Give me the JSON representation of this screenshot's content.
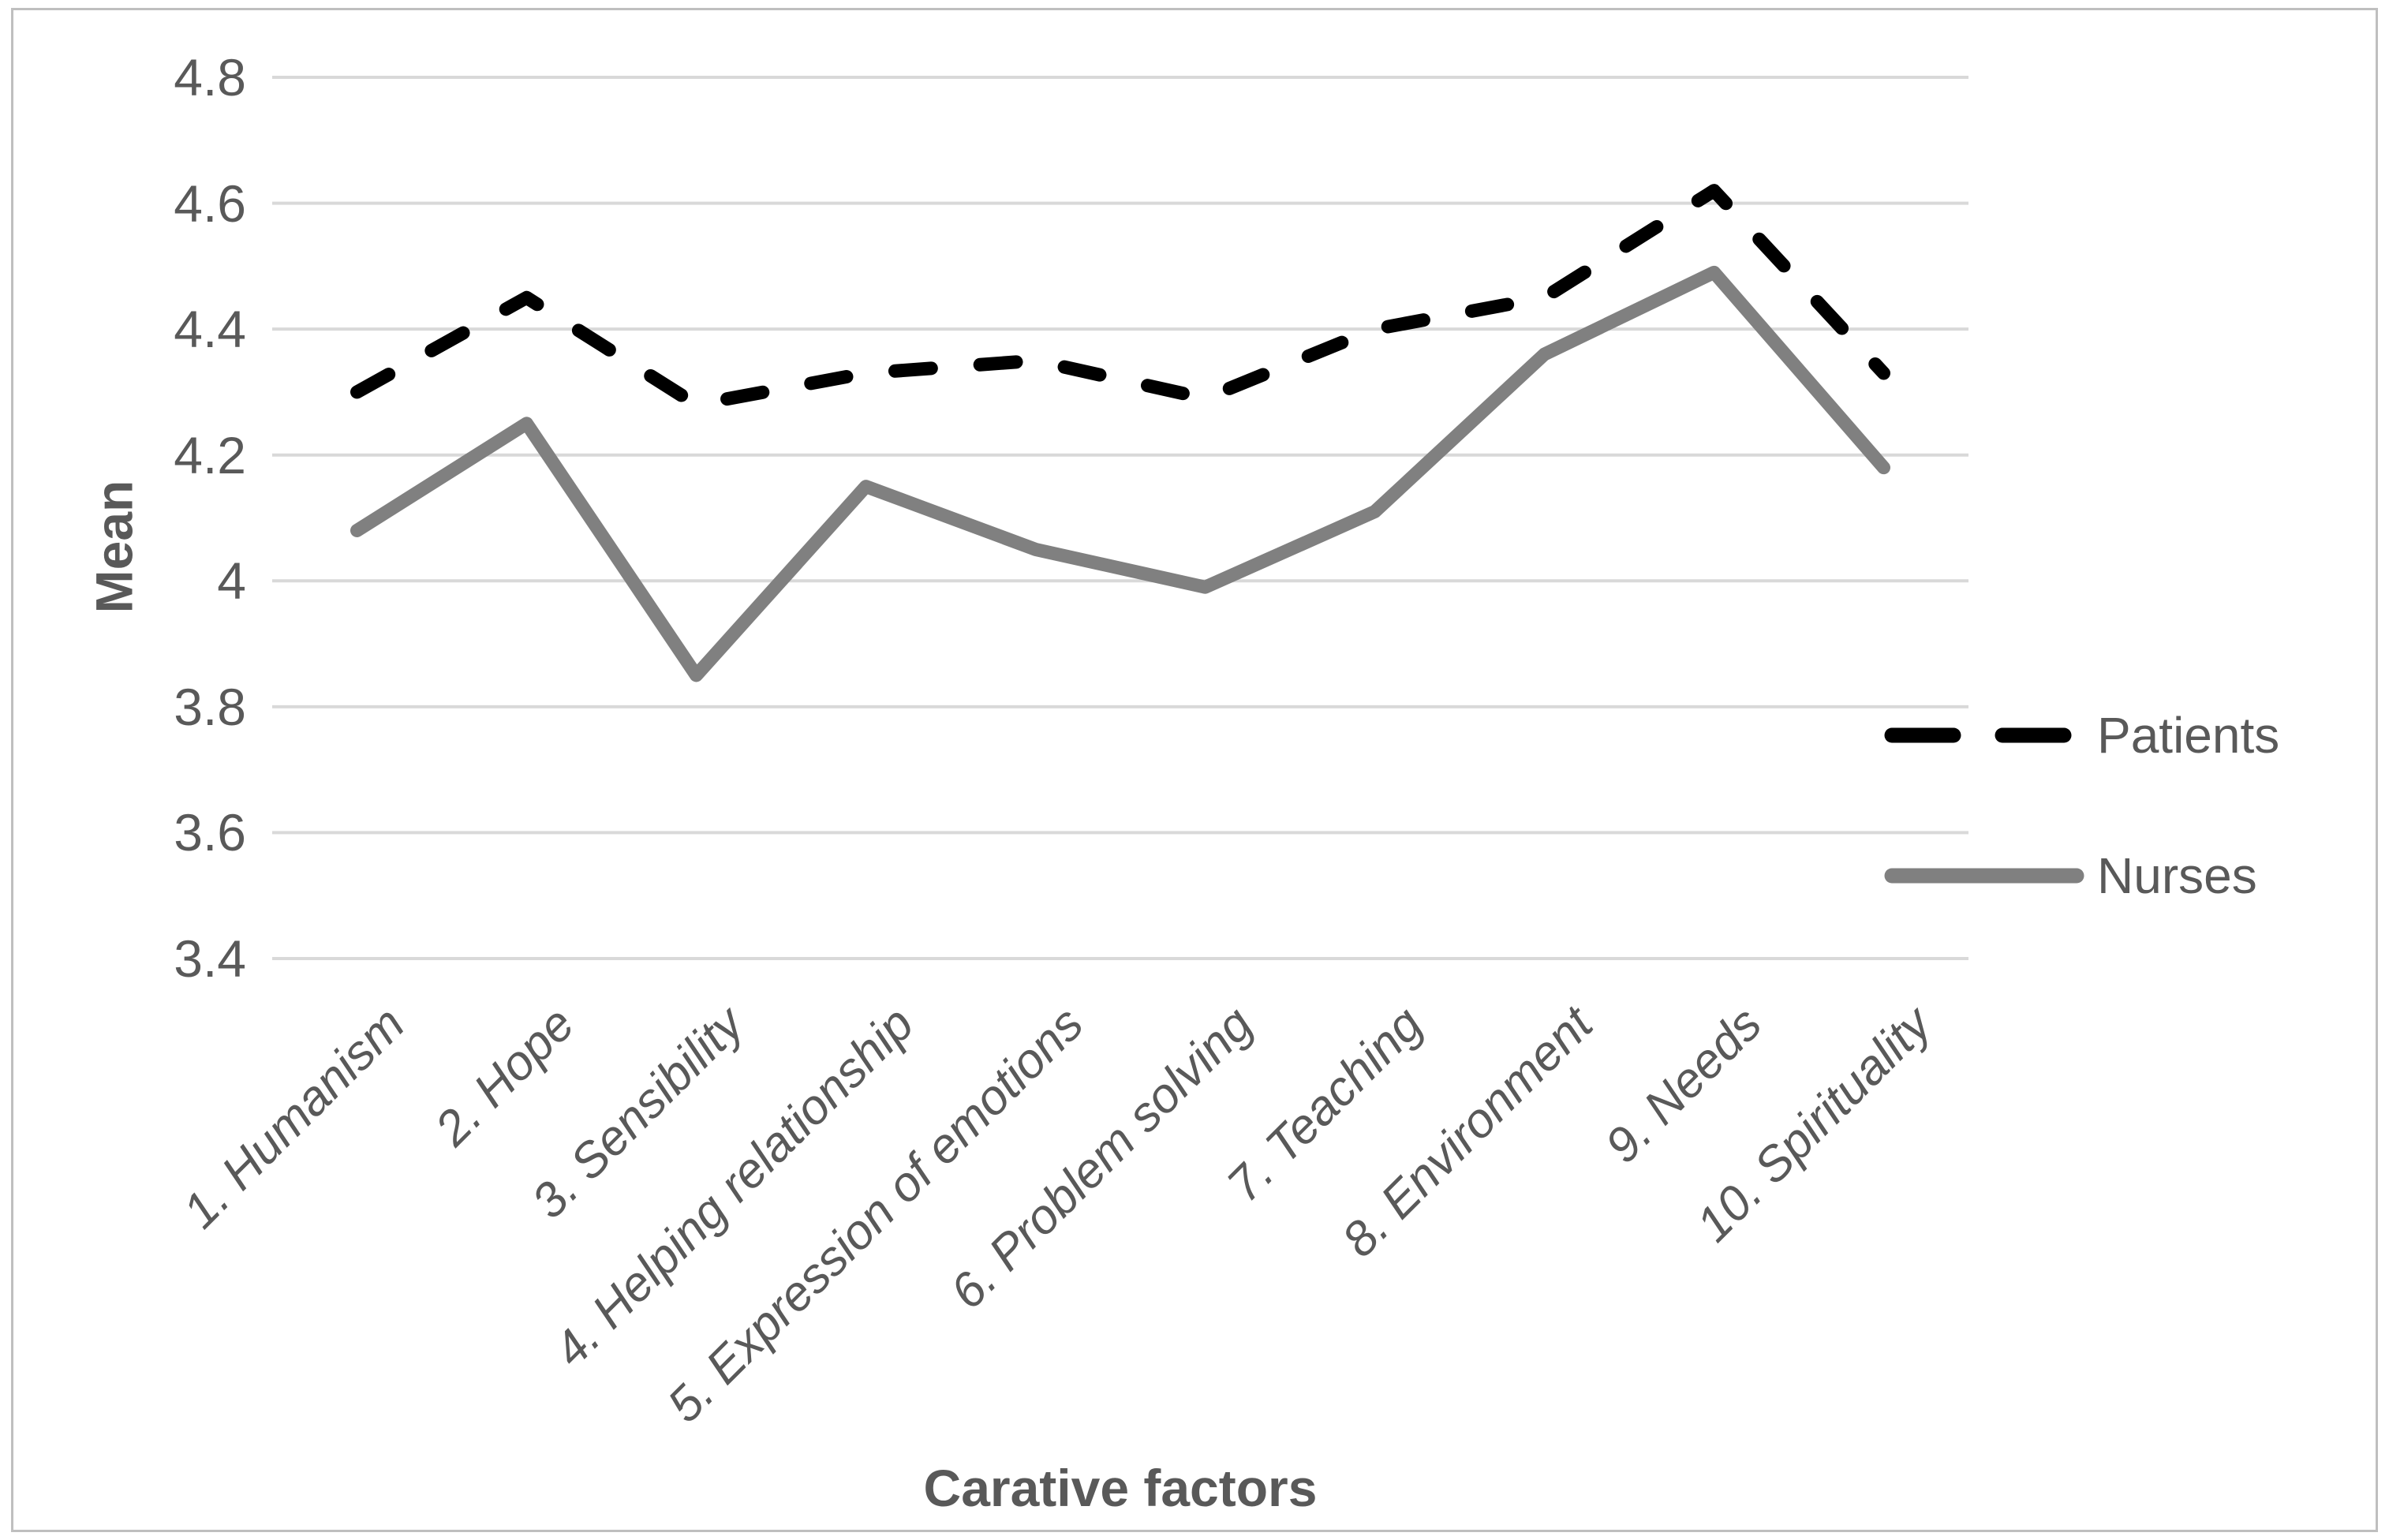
{
  "chart_data": {
    "type": "line",
    "title": "",
    "xlabel": "Carative factors",
    "ylabel": "Mean",
    "categories": [
      "1. Humanism",
      "2. Hope",
      "3. Sensibility",
      "4. Helping relationship",
      "5. Expression of emotions",
      "6. Problem solving",
      "7. Teaching",
      "8. Environment",
      "9. Needs",
      "10. Spirituality"
    ],
    "series": [
      {
        "name": "Patients",
        "style": "dashed",
        "color": "#000000",
        "values": [
          4.3,
          4.45,
          4.28,
          4.33,
          4.35,
          4.29,
          4.4,
          4.45,
          4.62,
          4.33
        ]
      },
      {
        "name": "Nurses",
        "style": "solid",
        "color": "#808080",
        "values": [
          4.08,
          4.25,
          3.85,
          4.15,
          4.05,
          3.99,
          4.11,
          4.36,
          4.49,
          4.18
        ]
      }
    ],
    "ylim": [
      3.4,
      4.8
    ],
    "yticks": [
      "4.8",
      "4.6",
      "4.4",
      "4.2",
      "4",
      "3.8",
      "3.6",
      "3.4"
    ],
    "ytick_values": [
      4.8,
      4.6,
      4.4,
      4.2,
      4.0,
      3.8,
      3.6,
      3.4
    ],
    "grid": true,
    "legend_position": "right"
  },
  "colors": {
    "text": "#595959",
    "gridline": "#d9d9d9",
    "frame_border": "#bfbfbf",
    "patients_line": "#000000",
    "nurses_line": "#808080",
    "background": "#ffffff"
  }
}
